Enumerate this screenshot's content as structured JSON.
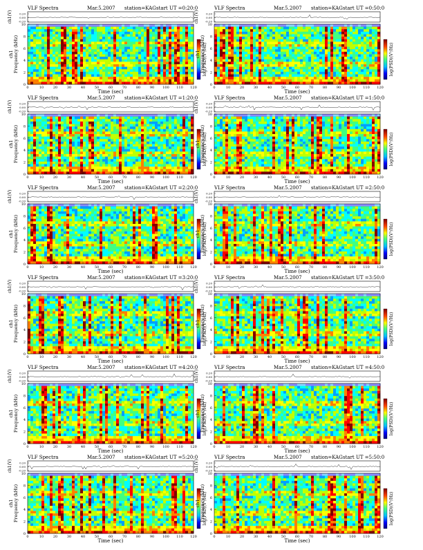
{
  "header": {
    "title": "VLF Spectra",
    "date": "Mar.5.2007",
    "station": "station=KAG",
    "start_prefix": "start  UT ="
  },
  "axes": {
    "top_ylabel": "ch1(V)",
    "top_ticks": [
      "0.20",
      "0.00",
      "-0.20"
    ],
    "spec_ylabel_line1": "ch1",
    "spec_ylabel_line2": "Frequency (kHz)",
    "freq_ticks": [
      "0",
      "2",
      "4",
      "6",
      "8",
      "10"
    ],
    "xlabel": "Time (sec)",
    "x_ticks": [
      "0",
      "10",
      "20",
      "30",
      "40",
      "50",
      "60",
      "70",
      "80",
      "90",
      "100",
      "110",
      "120"
    ],
    "colorbar_label": "log(PSD)(V²/Hz)"
  },
  "chart_data": {
    "type": "heatmap",
    "description_units": {
      "x": "sec",
      "y": "kHz"
    },
    "xlim": [
      0,
      120
    ],
    "ylim": [
      0,
      10
    ],
    "panels": [
      {
        "start_ut": "0:20:0"
      },
      {
        "start_ut": "0:50:0"
      },
      {
        "start_ut": "1:20:0"
      },
      {
        "start_ut": "1:50:0"
      },
      {
        "start_ut": "2:20:0"
      },
      {
        "start_ut": "2:50:0"
      },
      {
        "start_ut": "3:20:0"
      },
      {
        "start_ut": "3:50:0"
      },
      {
        "start_ut": "4:20:0"
      },
      {
        "start_ut": "4:50:0"
      },
      {
        "start_ut": "5:20:0"
      },
      {
        "start_ut": "5:50:0"
      }
    ],
    "colormap": [
      "#000080",
      "#0000ff",
      "#00a0ff",
      "#00ffff",
      "#40ff80",
      "#c0ff00",
      "#ffff00",
      "#ff8000",
      "#ff0000",
      "#800000"
    ]
  }
}
